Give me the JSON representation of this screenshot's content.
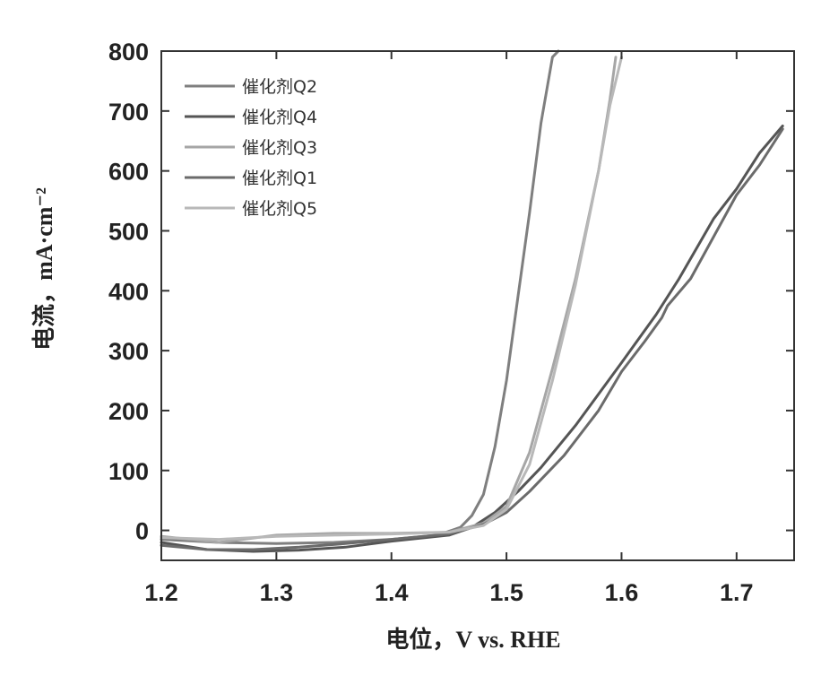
{
  "chart_data": {
    "type": "line",
    "xlabel": "电位，V vs. RHE",
    "ylabel": "电流，mA·cm⁻²",
    "xlim": [
      1.2,
      1.75
    ],
    "ylim": [
      -50,
      800
    ],
    "xticks": [
      1.2,
      1.3,
      1.4,
      1.5,
      1.6,
      1.7
    ],
    "xtick_labels": [
      "1.2",
      "1.3",
      "1.4",
      "1.5",
      "1.6",
      "1.7"
    ],
    "yticks": [
      0,
      100,
      200,
      300,
      400,
      500,
      600,
      700,
      800
    ],
    "ytick_labels": [
      "0",
      "100",
      "200",
      "300",
      "400",
      "500",
      "600",
      "700",
      "800"
    ],
    "grid": false,
    "legend_position": "top-left",
    "series": [
      {
        "name": "催化剂Q2",
        "color": "#7f7f7f",
        "points": [
          [
            1.2,
            -15
          ],
          [
            1.25,
            -20
          ],
          [
            1.3,
            -22
          ],
          [
            1.35,
            -20
          ],
          [
            1.4,
            -15
          ],
          [
            1.44,
            -8
          ],
          [
            1.46,
            5
          ],
          [
            1.47,
            25
          ],
          [
            1.48,
            60
          ],
          [
            1.49,
            140
          ],
          [
            1.5,
            250
          ],
          [
            1.51,
            390
          ],
          [
            1.52,
            530
          ],
          [
            1.53,
            680
          ],
          [
            1.54,
            790
          ],
          [
            1.545,
            800
          ]
        ]
      },
      {
        "name": "催化剂Q4",
        "color": "#555555",
        "points": [
          [
            1.2,
            -20
          ],
          [
            1.24,
            -32
          ],
          [
            1.28,
            -35
          ],
          [
            1.32,
            -33
          ],
          [
            1.36,
            -28
          ],
          [
            1.4,
            -18
          ],
          [
            1.45,
            -8
          ],
          [
            1.47,
            5
          ],
          [
            1.49,
            30
          ],
          [
            1.51,
            65
          ],
          [
            1.53,
            105
          ],
          [
            1.56,
            175
          ],
          [
            1.6,
            280
          ],
          [
            1.63,
            360
          ],
          [
            1.65,
            420
          ],
          [
            1.68,
            520
          ],
          [
            1.7,
            570
          ],
          [
            1.72,
            630
          ],
          [
            1.74,
            675
          ]
        ]
      },
      {
        "name": "催化剂Q3",
        "color": "#a6a6a6",
        "points": [
          [
            1.2,
            -10
          ],
          [
            1.25,
            -20
          ],
          [
            1.3,
            -8
          ],
          [
            1.35,
            -5
          ],
          [
            1.4,
            -5
          ],
          [
            1.45,
            -3
          ],
          [
            1.48,
            12
          ],
          [
            1.5,
            40
          ],
          [
            1.52,
            130
          ],
          [
            1.54,
            270
          ],
          [
            1.56,
            420
          ],
          [
            1.58,
            600
          ],
          [
            1.59,
            720
          ],
          [
            1.595,
            790
          ]
        ]
      },
      {
        "name": "催化剂Q1",
        "color": "#6b6b6b",
        "points": [
          [
            1.2,
            -25
          ],
          [
            1.24,
            -32
          ],
          [
            1.28,
            -32
          ],
          [
            1.32,
            -28
          ],
          [
            1.36,
            -22
          ],
          [
            1.4,
            -15
          ],
          [
            1.45,
            -6
          ],
          [
            1.48,
            10
          ],
          [
            1.5,
            30
          ],
          [
            1.52,
            65
          ],
          [
            1.55,
            125
          ],
          [
            1.58,
            200
          ],
          [
            1.6,
            265
          ],
          [
            1.62,
            315
          ],
          [
            1.635,
            355
          ],
          [
            1.64,
            375
          ],
          [
            1.66,
            420
          ],
          [
            1.7,
            560
          ],
          [
            1.72,
            610
          ],
          [
            1.74,
            670
          ]
        ]
      },
      {
        "name": "催化剂Q5",
        "color": "#b8b8b8",
        "points": [
          [
            1.2,
            -12
          ],
          [
            1.25,
            -15
          ],
          [
            1.3,
            -10
          ],
          [
            1.35,
            -8
          ],
          [
            1.4,
            -6
          ],
          [
            1.45,
            -3
          ],
          [
            1.48,
            8
          ],
          [
            1.5,
            35
          ],
          [
            1.52,
            110
          ],
          [
            1.54,
            250
          ],
          [
            1.56,
            410
          ],
          [
            1.58,
            600
          ],
          [
            1.59,
            710
          ],
          [
            1.6,
            790
          ]
        ]
      }
    ]
  }
}
